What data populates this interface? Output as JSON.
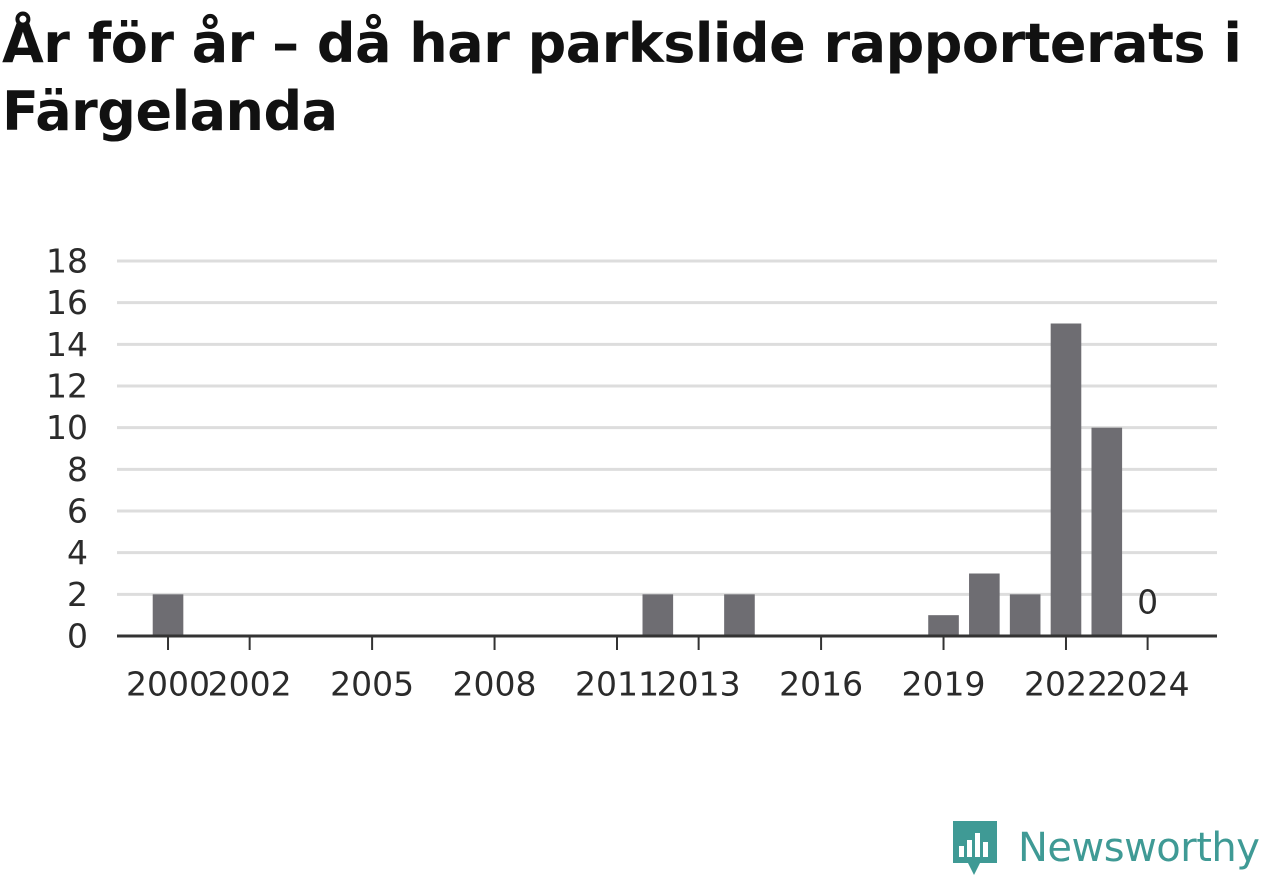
{
  "title": "År för år – då har parkslide rapporterats i Färgelanda",
  "brand": {
    "name": "Newsworthy",
    "color": "#3f9a95",
    "icon": "bar-chart-speech-bubble-icon"
  },
  "chart_data": {
    "type": "bar",
    "x": [
      2000,
      2012,
      2014,
      2019,
      2020,
      2021,
      2022,
      2023,
      2024
    ],
    "values": [
      2,
      2,
      2,
      1,
      3,
      2,
      15,
      10,
      0
    ],
    "x_tick_labels": [
      "2000",
      "2002",
      "2005",
      "2008",
      "2011",
      "2013",
      "2016",
      "2019",
      "2022",
      "2024"
    ],
    "x_tick_values": [
      2000,
      2002,
      2005,
      2008,
      2011,
      2013,
      2016,
      2019,
      2022,
      2024
    ],
    "y_ticks": [
      "0",
      "2",
      "4",
      "6",
      "8",
      "10",
      "12",
      "14",
      "16",
      "18"
    ],
    "ylim": [
      0,
      18
    ],
    "xlim": [
      1998.75,
      2025.7
    ],
    "annotations": [
      {
        "x": 2024,
        "text": "0"
      }
    ],
    "bar_color": "#6e6d72",
    "grid": true,
    "grid_color": "#dddddd",
    "axis_color": "#333333"
  }
}
